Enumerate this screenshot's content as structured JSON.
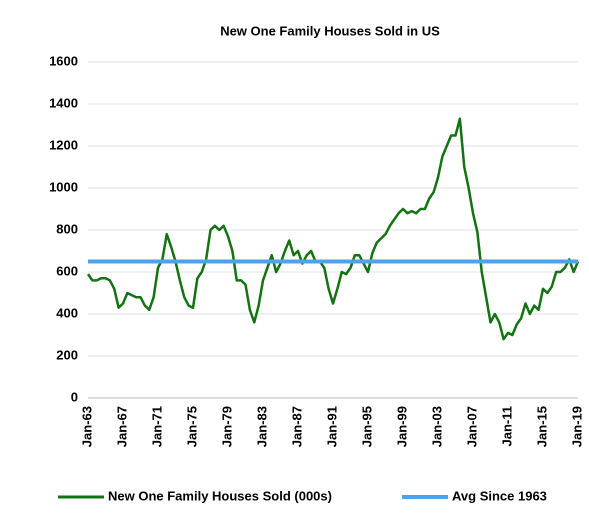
{
  "chart_data": {
    "type": "line",
    "title": "New One Family Houses Sold in US",
    "categories": [
      "Jan-63",
      "Jul-63",
      "Jan-64",
      "Jul-64",
      "Jan-65",
      "Jul-65",
      "Jan-66",
      "Jul-66",
      "Jan-67",
      "Jul-67",
      "Jan-68",
      "Jul-68",
      "Jan-69",
      "Jul-69",
      "Jan-70",
      "Jul-70",
      "Jan-71",
      "Jul-71",
      "Jan-72",
      "Jul-72",
      "Jan-73",
      "Jul-73",
      "Jan-74",
      "Jul-74",
      "Jan-75",
      "Jul-75",
      "Jan-76",
      "Jul-76",
      "Jan-77",
      "Jul-77",
      "Jan-78",
      "Jul-78",
      "Jan-79",
      "Jul-79",
      "Jan-80",
      "Jul-80",
      "Jan-81",
      "Jul-81",
      "Jan-82",
      "Jul-82",
      "Jan-83",
      "Jul-83",
      "Jan-84",
      "Jul-84",
      "Jan-85",
      "Jul-85",
      "Jan-86",
      "Jul-86",
      "Jan-87",
      "Jul-87",
      "Jan-88",
      "Jul-88",
      "Jan-89",
      "Jul-89",
      "Jan-90",
      "Jul-90",
      "Jan-91",
      "Jul-91",
      "Jan-92",
      "Jul-92",
      "Jan-93",
      "Jul-93",
      "Jan-94",
      "Jul-94",
      "Jan-95",
      "Jul-95",
      "Jan-96",
      "Jul-96",
      "Jan-97",
      "Jul-97",
      "Jan-98",
      "Jul-98",
      "Jan-99",
      "Jul-99",
      "Jan-00",
      "Jul-00",
      "Jan-01",
      "Jul-01",
      "Jan-02",
      "Jul-02",
      "Jan-03",
      "Jul-03",
      "Jan-04",
      "Jul-04",
      "Jan-05",
      "Jul-05",
      "Jan-06",
      "Jul-06",
      "Jan-07",
      "Jul-07",
      "Jan-08",
      "Jul-08",
      "Jan-09",
      "Jul-09",
      "Jan-10",
      "Jul-10",
      "Jan-11",
      "Jul-11",
      "Jan-12",
      "Jul-12",
      "Jan-13",
      "Jul-13",
      "Jan-14",
      "Jul-14",
      "Jan-15",
      "Jul-15",
      "Jan-16",
      "Jul-16",
      "Jan-17",
      "Jul-17",
      "Jan-18",
      "Jul-18",
      "Jan-19"
    ],
    "series": [
      {
        "name": "New One Family Houses Sold (000s)",
        "color": "#137313",
        "values": [
          590,
          560,
          560,
          570,
          570,
          560,
          520,
          430,
          450,
          500,
          490,
          480,
          480,
          440,
          420,
          480,
          620,
          660,
          780,
          720,
          650,
          560,
          480,
          440,
          430,
          570,
          600,
          660,
          800,
          820,
          800,
          820,
          770,
          700,
          560,
          560,
          540,
          420,
          360,
          440,
          560,
          620,
          680,
          600,
          640,
          700,
          750,
          680,
          700,
          640,
          680,
          700,
          650,
          650,
          620,
          520,
          450,
          520,
          600,
          590,
          620,
          680,
          680,
          640,
          600,
          690,
          740,
          760,
          780,
          820,
          850,
          880,
          900,
          880,
          890,
          880,
          900,
          900,
          950,
          980,
          1050,
          1150,
          1200,
          1250,
          1250,
          1330,
          1100,
          1000,
          880,
          790,
          600,
          480,
          360,
          400,
          360,
          280,
          310,
          300,
          350,
          380,
          450,
          400,
          440,
          420,
          520,
          500,
          530,
          600,
          600,
          620,
          660,
          600,
          650
        ]
      }
    ],
    "average": {
      "name": "Avg Since 1963",
      "value": 650,
      "color": "#4da3e6"
    },
    "xticks": [
      "Jan-63",
      "Jan-67",
      "Jan-71",
      "Jan-75",
      "Jan-79",
      "Jan-83",
      "Jan-87",
      "Jan-91",
      "Jan-95",
      "Jan-99",
      "Jan-03",
      "Jan-07",
      "Jan-11",
      "Jan-15",
      "Jan-19"
    ],
    "ylim": [
      0,
      1600
    ],
    "yticks": [
      0,
      200,
      400,
      600,
      800,
      1000,
      1200,
      1400,
      1600
    ],
    "grid": true,
    "legend": "bottom"
  }
}
